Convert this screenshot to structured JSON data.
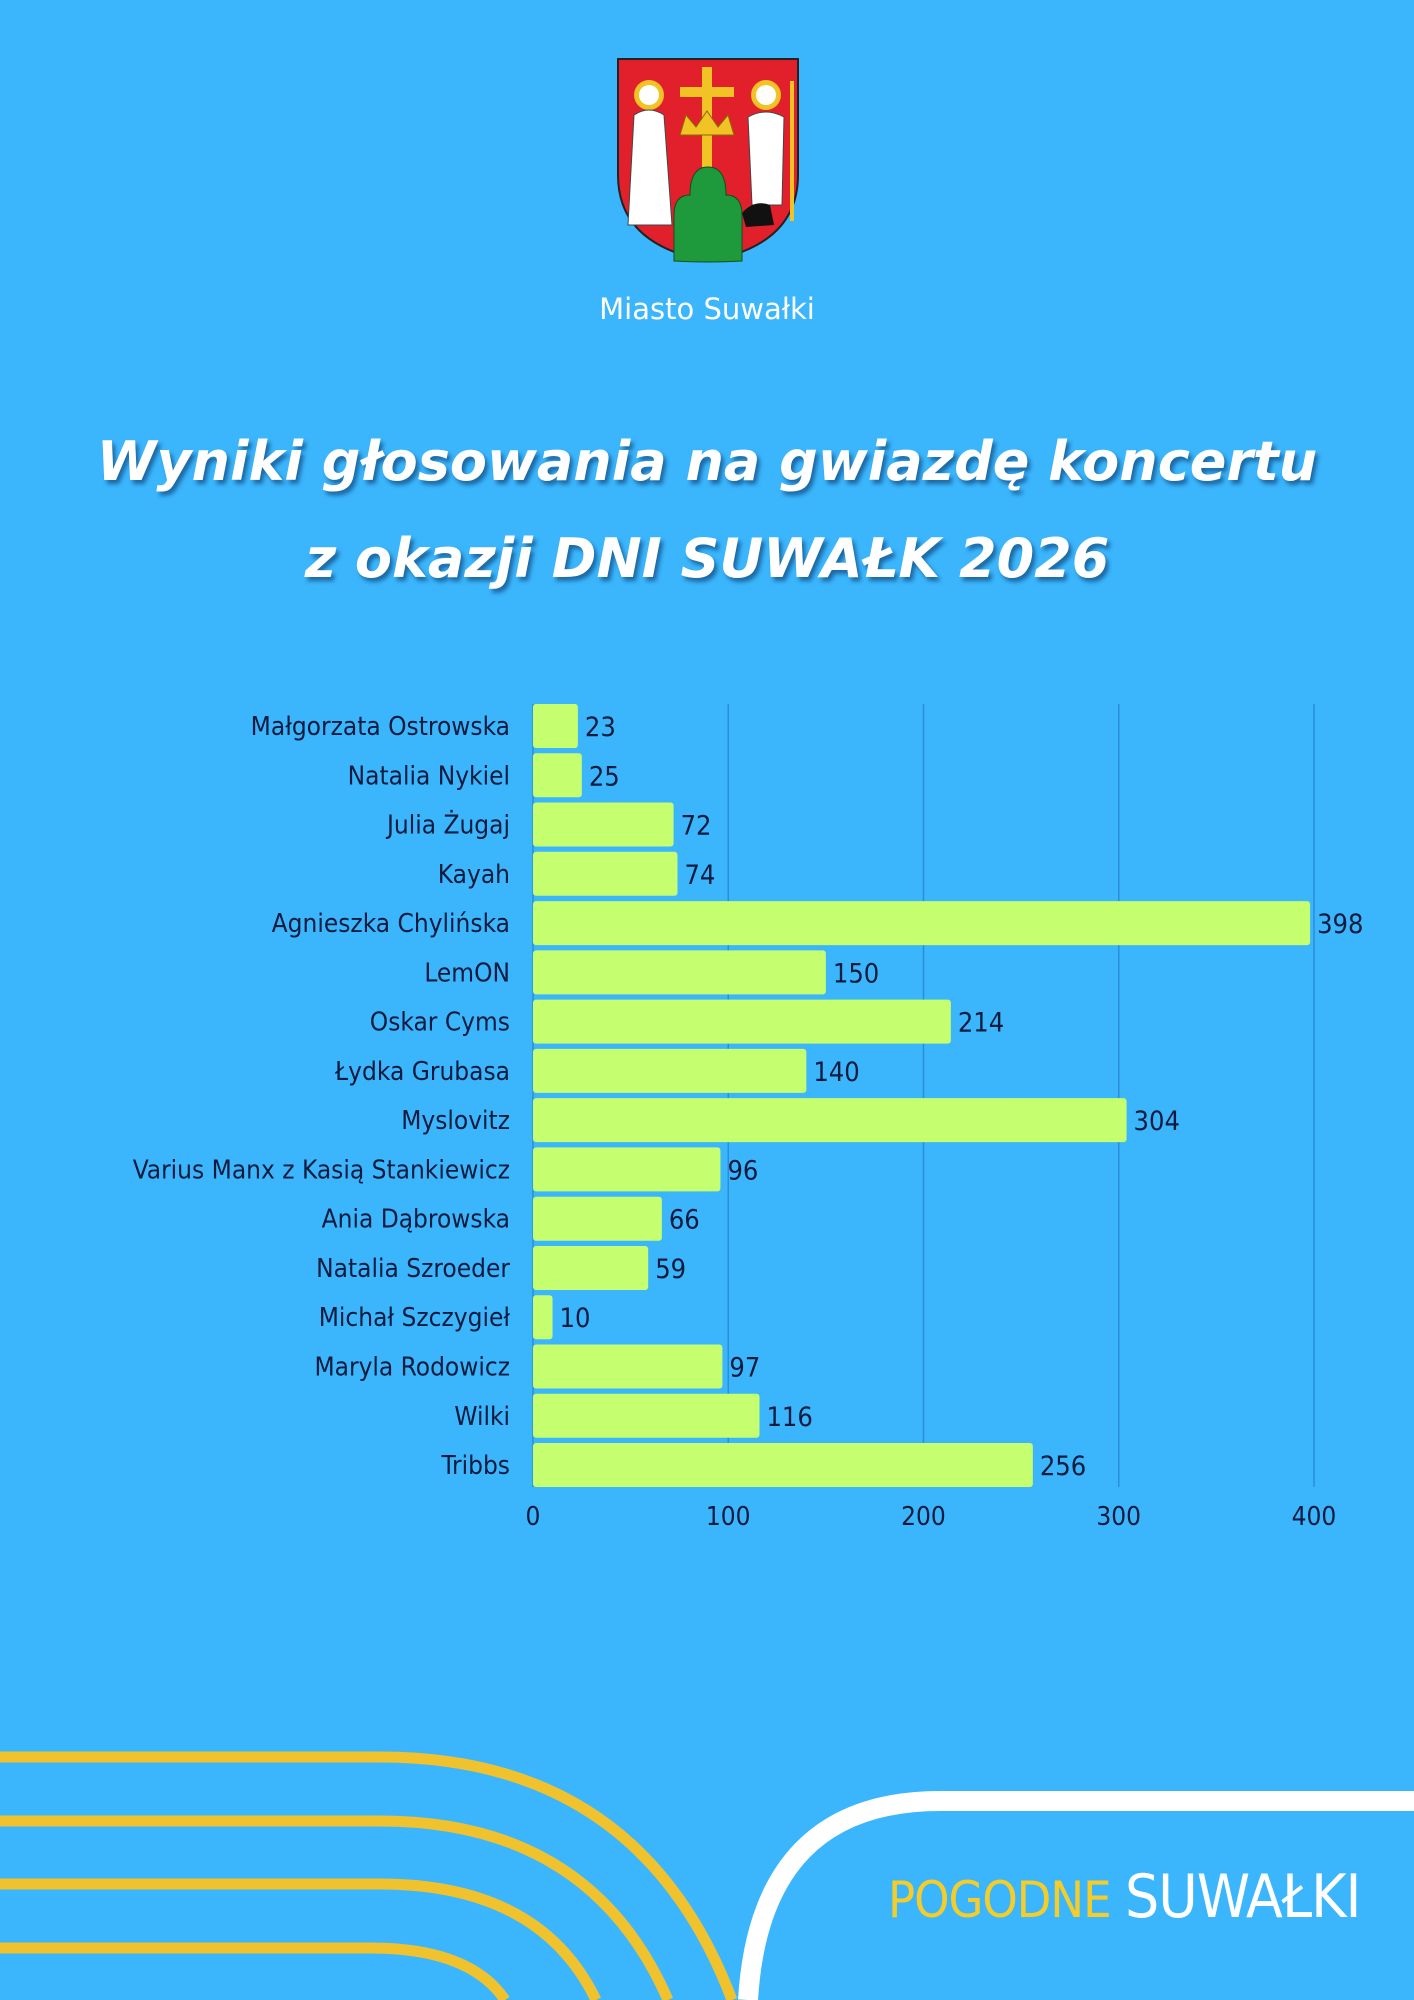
{
  "header": {
    "city_name": "Miasto Suwałki",
    "crest_alt": "Herb Suwałk",
    "title_line1": "Wyniki głosowania na gwiazdę koncertu",
    "title_line2": "z okazji DNI SUWAŁK 2026"
  },
  "footer": {
    "logo_part1": "POGODNE",
    "logo_part2": "SUWAŁKI"
  },
  "colors": {
    "background": "#3bb6fd",
    "bar": "#c5fe6e",
    "text": "#0d1b3e",
    "accent_yellow": "#f0c22e",
    "white": "#ffffff"
  },
  "chart_data": {
    "type": "bar",
    "orientation": "horizontal",
    "categories": [
      "Małgorzata Ostrowska",
      "Natalia Nykiel",
      "Julia Żugaj",
      "Kayah",
      "Agnieszka Chylińska",
      "LemON",
      "Oskar Cyms",
      "Łydka Grubasa",
      "Myslovitz",
      "Varius Manx z Kasią Stankiewicz",
      "Ania Dąbrowska",
      "Natalia Szroeder",
      "Michał Szczygieł",
      "Maryla Rodowicz",
      "Wilki",
      "Tribbs"
    ],
    "values": [
      23,
      25,
      72,
      74,
      398,
      150,
      214,
      140,
      304,
      96,
      66,
      59,
      10,
      97,
      116,
      256
    ],
    "xlim": [
      0,
      400
    ],
    "xticks": [
      0,
      100,
      200,
      300,
      400
    ],
    "grid": "vertical",
    "data_labels": true,
    "title": "",
    "xlabel": "",
    "ylabel": ""
  }
}
